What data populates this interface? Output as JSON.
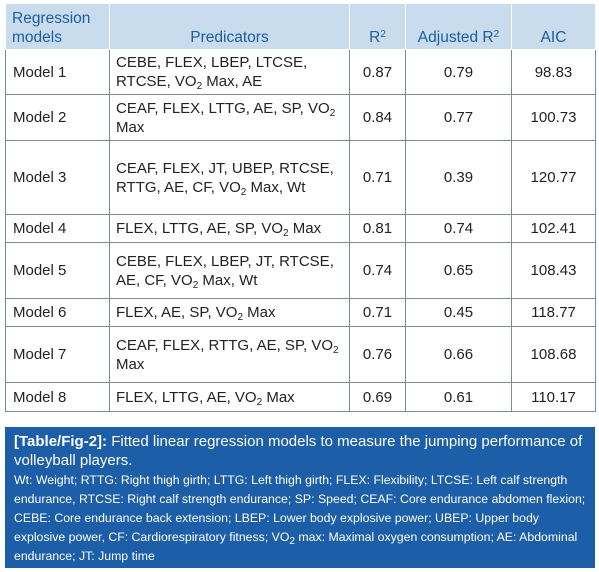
{
  "table": {
    "headers": {
      "regression_models": "Regression models",
      "predicators": "Predicators",
      "r2": "R",
      "r2_sup": "2",
      "adjusted_r2": "Adjusted R",
      "adjusted_r2_sup": "2",
      "aic": "AIC"
    },
    "rows": [
      {
        "model": "Model 1",
        "pred_parts": [
          "CEBE, FLEX, LBEP, LTCSE, RTCSE, VO",
          "2",
          " Max, AE"
        ],
        "r2": "0.87",
        "adj_r2": "0.79",
        "aic": "98.83"
      },
      {
        "model": "Model 2",
        "pred_parts": [
          "CEAF, FLEX, LTTG, AE, SP, VO",
          "2",
          " Max"
        ],
        "r2": "0.84",
        "adj_r2": "0.77",
        "aic": "100.73"
      },
      {
        "model": "Model 3",
        "pred_parts": [
          "CEAF, FLEX, JT, UBEP, RTCSE, RTTG, AE, CF, VO",
          "2",
          " Max, Wt"
        ],
        "r2": "0.71",
        "adj_r2": "0.39",
        "aic": "120.77"
      },
      {
        "model": "Model 4",
        "pred_parts": [
          "FLEX, LTTG, AE, SP, VO",
          "2",
          " Max"
        ],
        "r2": "0.81",
        "adj_r2": "0.74",
        "aic": "102.41"
      },
      {
        "model": "Model 5",
        "pred_parts": [
          "CEBE, FLEX, LBEP, JT, RTCSE, AE, CF, VO",
          "2",
          " Max, Wt"
        ],
        "r2": "0.74",
        "adj_r2": "0.65",
        "aic": "108.43"
      },
      {
        "model": "Model 6",
        "pred_parts": [
          "FLEX, AE, SP, VO",
          "2",
          " Max"
        ],
        "r2": "0.71",
        "adj_r2": "0.45",
        "aic": "118.77"
      },
      {
        "model": "Model 7",
        "pred_parts": [
          "CEAF, FLEX, RTTG, AE, SP, VO",
          "2",
          " Max"
        ],
        "r2": "0.76",
        "adj_r2": "0.66",
        "aic": "108.68"
      },
      {
        "model": "Model 8",
        "pred_parts": [
          "FLEX, LTTG, AE, VO",
          "2",
          " Max"
        ],
        "r2": "0.69",
        "adj_r2": "0.61",
        "aic": "110.17"
      }
    ]
  },
  "caption": {
    "label": "[Table/Fig-2]:",
    "title": " Fitted linear regression models to measure the jumping performance of volleyball players.",
    "notes_before": "Wt: Weight; RTTG: Right thigh girth; LTTG: Left thigh girth; FLEX: Flexibility; LTCSE: Left calf strength endurance, RTCSE: Right calf strength endurance; SP: Speed; CEAF: Core endurance abdomen flexion; CEBE: Core endurance back extension; LBEP: Lower body explosive power; UBEP: Upper body explosive power, CF: Cardiorespiratory fitness; VO",
    "notes_sub": "2",
    "notes_after": " max: Maximal oxygen consumption; AE: Abdominal endurance; JT: Jump time"
  },
  "colors": {
    "header_bg": "#c9dcee",
    "header_text": "#1b5e9c",
    "caption_bg": "#1c5ea8",
    "border": "#7a8a96"
  }
}
